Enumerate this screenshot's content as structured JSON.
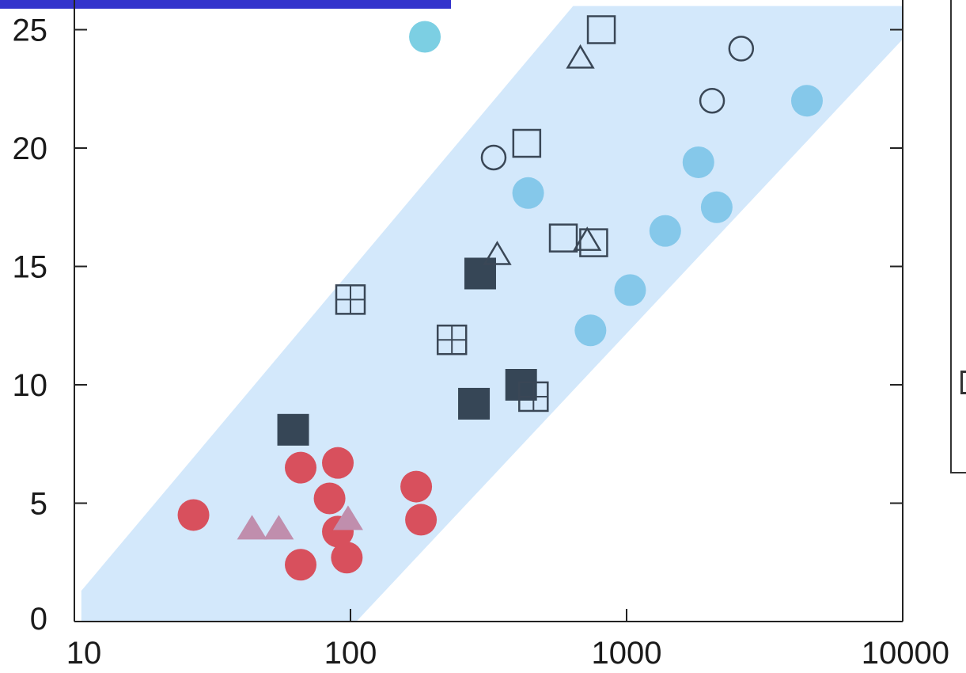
{
  "colors": {
    "band": "#d3e8fb",
    "red": "#d8505d",
    "cyan": "#7ccfe3",
    "lightblue": "#85c8ea",
    "dark": "#364656",
    "mauve": "#c08ead",
    "outline": "#3a4756",
    "top_bar": "#3333cc"
  },
  "chart_data": {
    "type": "scatter",
    "x_scale": "log",
    "xlim": [
      10,
      10000
    ],
    "ylim": [
      0,
      26
    ],
    "x_ticks": [
      10,
      100,
      1000,
      10000
    ],
    "y_ticks": [
      0,
      5,
      10,
      15,
      20,
      25
    ],
    "x_tick_labels": [
      "10",
      "100",
      "1000",
      "10000"
    ],
    "y_tick_labels": [
      "0",
      "5",
      "10",
      "15",
      "20",
      "25"
    ],
    "grid": false,
    "band": [
      [
        10.6,
        1.3
      ],
      [
        10.6,
        0
      ],
      [
        105,
        0
      ],
      [
        10000,
        24.6
      ],
      [
        10000,
        26
      ],
      [
        640,
        26
      ]
    ],
    "series": [
      {
        "marker": "filled-circle",
        "color": "red",
        "points": [
          [
            27,
            4.5
          ],
          [
            66,
            6.5
          ],
          [
            84,
            5.2
          ],
          [
            90,
            6.7
          ],
          [
            90,
            3.8
          ],
          [
            97,
            2.7
          ],
          [
            66,
            2.4
          ],
          [
            173,
            5.7
          ],
          [
            180,
            4.3
          ]
        ]
      },
      {
        "marker": "filled-triangle",
        "color": "mauve",
        "points": [
          [
            44,
            3.9
          ],
          [
            55,
            3.9
          ],
          [
            98,
            4.3
          ]
        ]
      },
      {
        "marker": "filled-square",
        "color": "dark",
        "points": [
          [
            62,
            8.1
          ],
          [
            295,
            14.7
          ],
          [
            280,
            9.2
          ],
          [
            415,
            10.0
          ]
        ]
      },
      {
        "marker": "open-square-cross",
        "color": "outline",
        "points": [
          [
            100,
            13.6
          ],
          [
            233,
            11.9
          ],
          [
            460,
            9.5
          ]
        ]
      },
      {
        "marker": "open-circle",
        "color": "outline",
        "points": [
          [
            330,
            19.6
          ],
          [
            2040,
            22.0
          ],
          [
            2600,
            24.2
          ]
        ]
      },
      {
        "marker": "open-square",
        "color": "outline",
        "points": [
          [
            435,
            20.2
          ],
          [
            590,
            16.2
          ],
          [
            760,
            16.0
          ],
          [
            810,
            25.0
          ]
        ]
      },
      {
        "marker": "open-triangle",
        "color": "outline",
        "points": [
          [
            340,
            15.5
          ],
          [
            680,
            23.8
          ],
          [
            720,
            16.1
          ]
        ]
      },
      {
        "marker": "filled-circle",
        "color": "lightblue",
        "points": [
          [
            440,
            18.1
          ],
          [
            740,
            12.3
          ],
          [
            1030,
            14.0
          ],
          [
            1380,
            16.5
          ],
          [
            1820,
            19.4
          ],
          [
            2120,
            17.5
          ],
          [
            4500,
            22.0
          ]
        ]
      },
      {
        "marker": "filled-circle",
        "color": "cyan",
        "points": [
          [
            186,
            24.7
          ]
        ]
      }
    ]
  }
}
